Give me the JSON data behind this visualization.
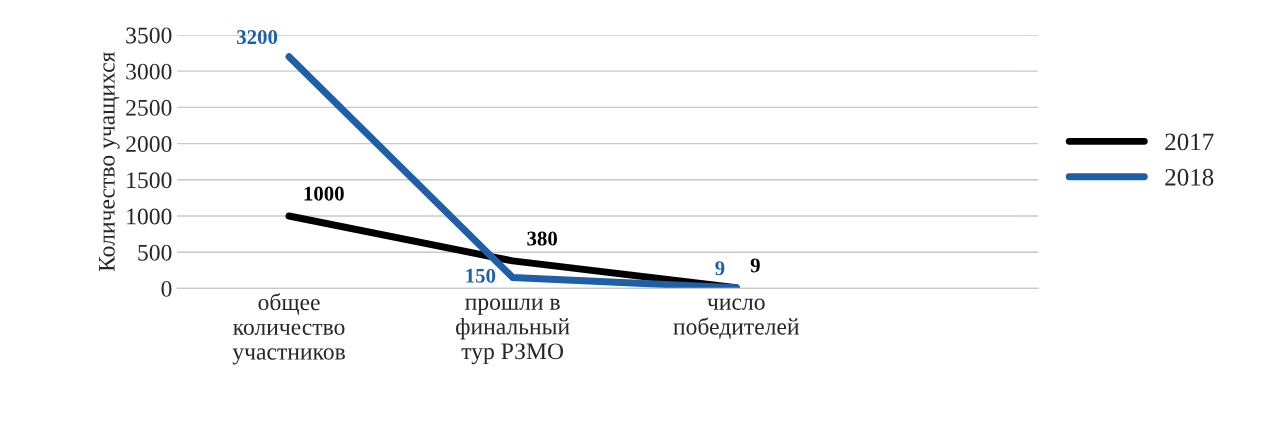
{
  "chart_data": {
    "type": "line",
    "ylabel": "Количество учащихся",
    "categories": [
      "общее\nколичество\nучастников",
      "прошли в\nфинальный\nтур РЗМО",
      "число\nпобедителей"
    ],
    "series": [
      {
        "name": "2017",
        "color": "#000000",
        "values": [
          1000,
          380,
          9
        ]
      },
      {
        "name": "2018",
        "color": "#1f5fa8",
        "values": [
          3200,
          150,
          9
        ]
      }
    ],
    "ylim": [
      0,
      3500
    ],
    "yticks": [
      0,
      500,
      1000,
      1500,
      2000,
      2500,
      3000,
      3500
    ],
    "grid": "y",
    "legend": "right",
    "data_labels": true,
    "marker": "none",
    "line_style": "solid"
  }
}
